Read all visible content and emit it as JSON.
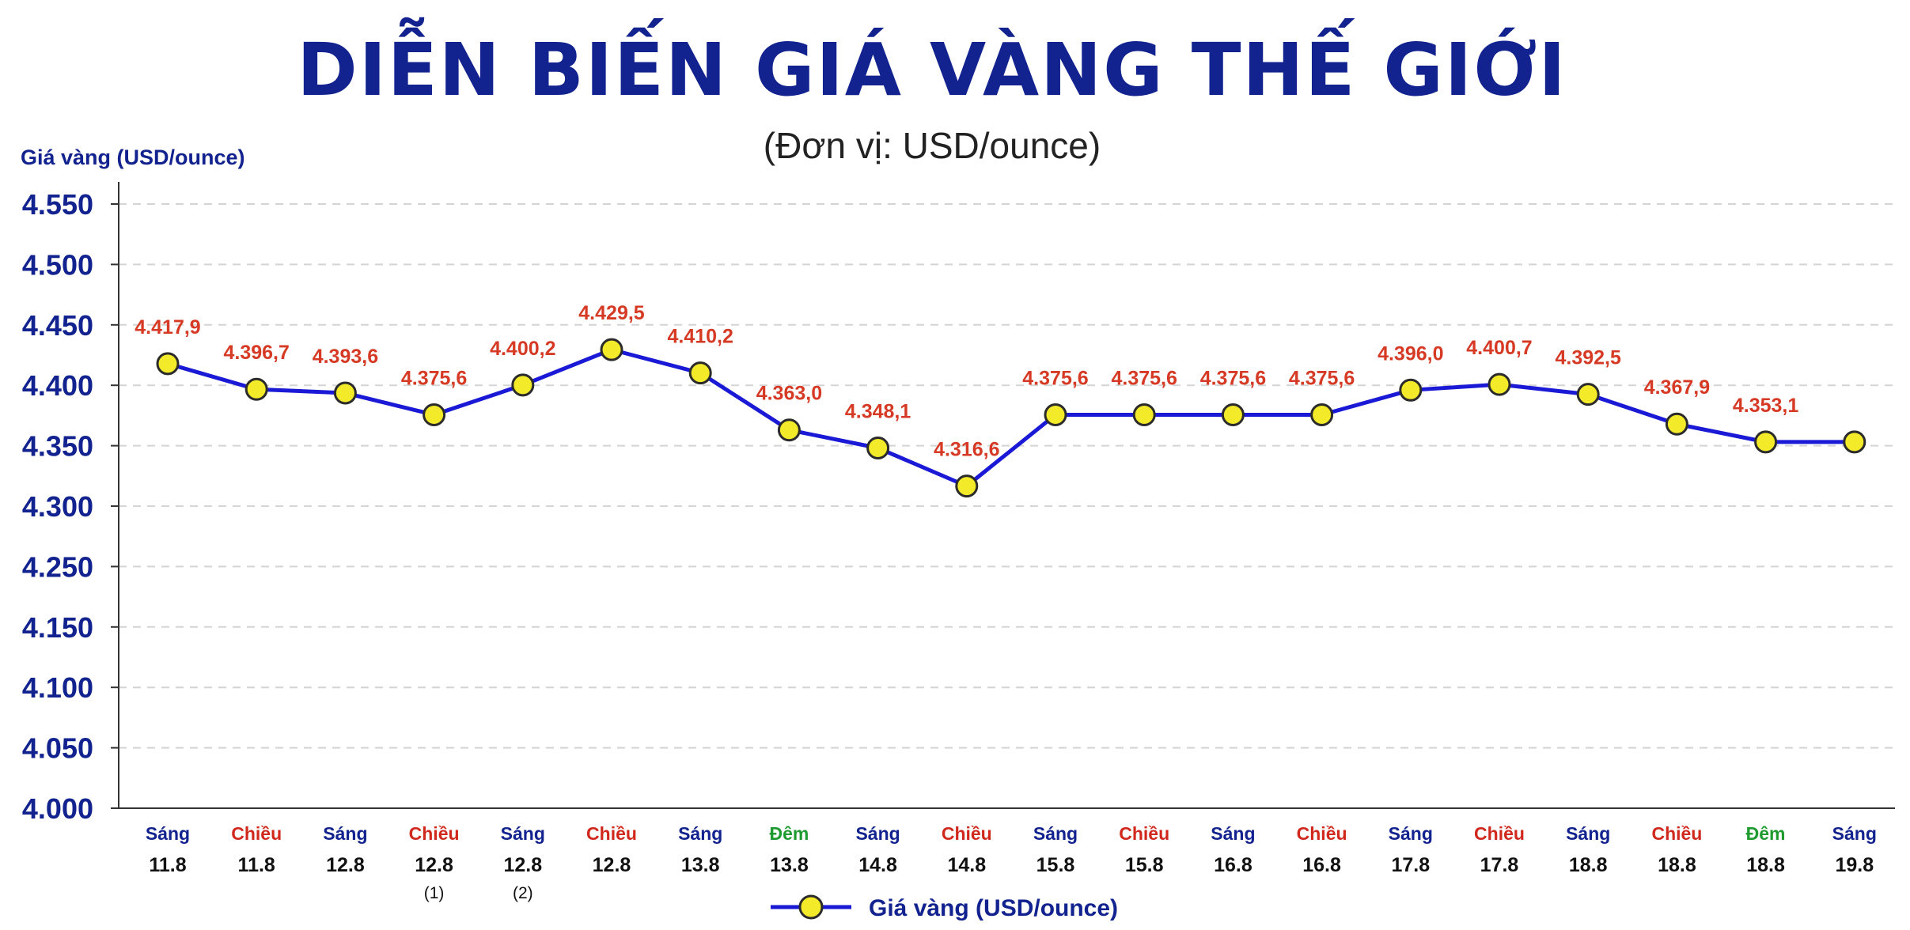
{
  "colors": {
    "title": "#12238f",
    "line": "#1a1ad6",
    "marker_fill": "#f3ea2a",
    "marker_stroke": "#2b2b2b",
    "value_label": "#d63a24",
    "sang": "#12238f",
    "chieu": "#d0281c",
    "dem": "#1e9a2e",
    "grid": "#d4d4d4",
    "axis": "#333333"
  },
  "chart_data": {
    "type": "line",
    "title": "DIỄN BIẾN GIÁ VÀNG THẾ GIỚI",
    "subtitle": "(Đơn vị: USD/ounce)",
    "ylabel": "Giá vàng (USD/ounce)",
    "xlabel": "",
    "yticks": [
      "4.000",
      "4.050",
      "4.100",
      "4.150",
      "4.250",
      "4.300",
      "4.350",
      "4.400",
      "4.450",
      "4.500",
      "4.550"
    ],
    "grid": true,
    "legend_position": "bottom-center",
    "categories": [
      {
        "period": "Sáng",
        "period_type": "sang",
        "date": "11.8",
        "note": ""
      },
      {
        "period": "Chiều",
        "period_type": "chieu",
        "date": "11.8",
        "note": ""
      },
      {
        "period": "Sáng",
        "period_type": "sang",
        "date": "12.8",
        "note": ""
      },
      {
        "period": "Chiều",
        "period_type": "chieu",
        "date": "12.8",
        "note": "(1)"
      },
      {
        "period": "Sáng",
        "period_type": "sang",
        "date": "12.8",
        "note": "(2)"
      },
      {
        "period": "Chiều",
        "period_type": "chieu",
        "date": "12.8",
        "note": ""
      },
      {
        "period": "Sáng",
        "period_type": "sang",
        "date": "13.8",
        "note": ""
      },
      {
        "period": "Đêm",
        "period_type": "dem",
        "date": "13.8",
        "note": ""
      },
      {
        "period": "Sáng",
        "period_type": "sang",
        "date": "14.8",
        "note": ""
      },
      {
        "period": "Chiều",
        "period_type": "chieu",
        "date": "14.8",
        "note": ""
      },
      {
        "period": "Sáng",
        "period_type": "sang",
        "date": "15.8",
        "note": ""
      },
      {
        "period": "Chiều",
        "period_type": "chieu",
        "date": "15.8",
        "note": ""
      },
      {
        "period": "Sáng",
        "period_type": "sang",
        "date": "16.8",
        "note": ""
      },
      {
        "period": "Chiều",
        "period_type": "chieu",
        "date": "16.8",
        "note": ""
      },
      {
        "period": "Sáng",
        "period_type": "sang",
        "date": "17.8",
        "note": ""
      },
      {
        "period": "Chiều",
        "period_type": "chieu",
        "date": "17.8",
        "note": ""
      },
      {
        "period": "Sáng",
        "period_type": "sang",
        "date": "18.8",
        "note": ""
      },
      {
        "period": "Chiều",
        "period_type": "chieu",
        "date": "18.8",
        "note": ""
      },
      {
        "period": "Đêm",
        "period_type": "dem",
        "date": "18.8",
        "note": ""
      },
      {
        "period": "Sáng",
        "period_type": "sang",
        "date": "19.8",
        "note": ""
      }
    ],
    "series": [
      {
        "name": "Giá vàng (USD/ounce)",
        "values": [
          4417.9,
          4396.7,
          4393.6,
          4375.6,
          4400.2,
          4429.5,
          4410.2,
          4363.0,
          4348.1,
          4316.6,
          4375.6,
          4375.6,
          4375.6,
          4375.6,
          4396.0,
          4400.7,
          4392.5,
          4367.9,
          4353.1,
          4353.1
        ],
        "labels": [
          "4.417,9",
          "4.396,7",
          "4.393,6",
          "4.375,6",
          "4.400,2",
          "4.429,5",
          "4.410,2",
          "4.363,0",
          "4.348,1",
          "4.316,6",
          "4.375,6",
          "4.375,6",
          "4.375,6",
          "4.375,6",
          "4.396,0",
          "4.400,7",
          "4.392,5",
          "4.367,9",
          "4.353,1",
          ""
        ]
      }
    ]
  }
}
